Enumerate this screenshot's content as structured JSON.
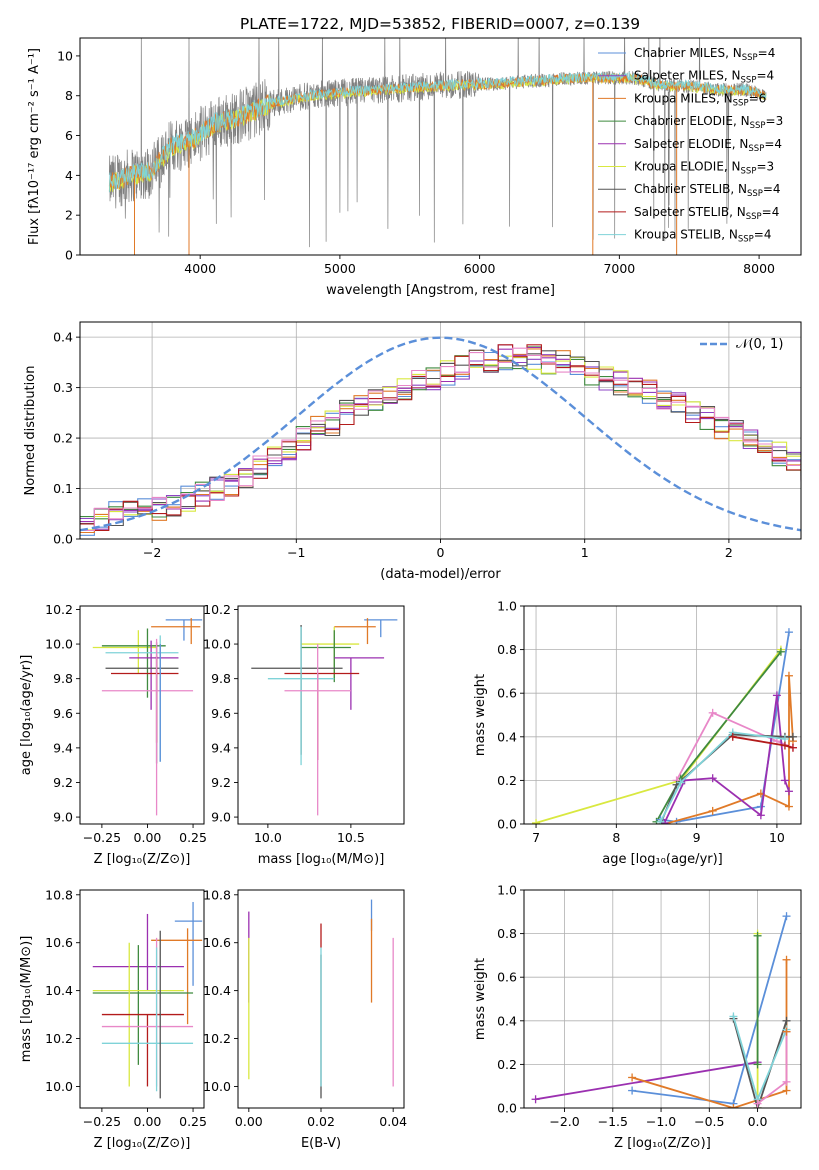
{
  "figure_title": "PLATE=1722, MJD=53852, FIBERID=0007, z=0.139",
  "colors": {
    "Chabrier MILES": "#5b8fd9",
    "Salpeter MILES": "#8e44c4",
    "Kroupa MILES": "#e07a28",
    "Chabrier ELODIE": "#3f8a3f",
    "Salpeter ELODIE": "#9b30b0",
    "Kroupa ELODIE": "#d9e840",
    "Chabrier STELIB": "#555555",
    "Salpeter STELIB": "#b31b1b",
    "Kroupa STELIB": "#7fd3d8",
    "pink": "#e888c8",
    "data_gray": "#808080",
    "grid": "#b0b0b0"
  },
  "chart_data": [
    {
      "id": "spectrum",
      "type": "line",
      "title": "",
      "xlabel": "wavelength [Angstrom, rest frame]",
      "ylabel": "Flux [fλ10⁻¹⁷ erg cm⁻² s⁻¹ A⁻¹]",
      "xlim": [
        3140,
        8300
      ],
      "ylim": [
        0,
        10.9
      ],
      "xticks": [
        4000,
        5000,
        6000,
        7000,
        8000
      ],
      "yticks": [
        0,
        2,
        4,
        6,
        8,
        10
      ],
      "grid": false,
      "legend_position": "top-right",
      "legend": [
        "Chabrier MILES, N_SSP=4",
        "Salpeter MILES, N_SSP=4",
        "Kroupa MILES, N_SSP=6",
        "Chabrier ELODIE, N_SSP=3",
        "Salpeter ELODIE, N_SSP=4",
        "Kroupa ELODIE, N_SSP=3",
        "Chabrier STELIB, N_SSP=4",
        "Salpeter STELIB, N_SSP=4",
        "Kroupa STELIB, N_SSP=4"
      ],
      "legend_colors": [
        "Chabrier MILES",
        "Salpeter MILES",
        "Kroupa MILES",
        "Chabrier ELODIE",
        "Salpeter ELODIE",
        "Kroupa ELODIE",
        "Chabrier STELIB",
        "Salpeter STELIB",
        "Kroupa STELIB"
      ],
      "continuum": [
        [
          3350,
          3.6
        ],
        [
          3500,
          4.0
        ],
        [
          3650,
          4.2
        ],
        [
          3800,
          5.5
        ],
        [
          3950,
          5.8
        ],
        [
          4100,
          6.6
        ],
        [
          4300,
          7.0
        ],
        [
          4500,
          7.6
        ],
        [
          4700,
          7.9
        ],
        [
          4900,
          8.1
        ],
        [
          5100,
          8.2
        ],
        [
          5300,
          8.3
        ],
        [
          5500,
          8.4
        ],
        [
          5700,
          8.5
        ],
        [
          5900,
          8.55
        ],
        [
          6100,
          8.6
        ],
        [
          6300,
          8.7
        ],
        [
          6500,
          8.8
        ],
        [
          6700,
          8.9
        ],
        [
          6900,
          8.9
        ],
        [
          7100,
          8.9
        ],
        [
          7300,
          8.5
        ],
        [
          7500,
          8.5
        ],
        [
          7700,
          8.3
        ],
        [
          7900,
          8.3
        ],
        [
          8050,
          8.0
        ]
      ]
    },
    {
      "id": "residuals",
      "type": "line",
      "title": "",
      "xlabel": "(data-model)/error",
      "ylabel": "Normed distribution",
      "xlim": [
        -2.5,
        2.5
      ],
      "ylim": [
        0,
        0.43
      ],
      "xticks": [
        -2,
        -1,
        0,
        1,
        2
      ],
      "yticks": [
        0.0,
        0.1,
        0.2,
        0.3,
        0.4
      ],
      "grid": true,
      "legend_position": "top-right",
      "legend": [
        "𝒩(0, 1)"
      ],
      "bin_width": 0.1,
      "histogram_mean": [
        0.03,
        0.04,
        0.05,
        0.05,
        0.06,
        0.06,
        0.07,
        0.08,
        0.09,
        0.1,
        0.11,
        0.12,
        0.14,
        0.16,
        0.18,
        0.2,
        0.22,
        0.23,
        0.25,
        0.27,
        0.28,
        0.29,
        0.3,
        0.31,
        0.32,
        0.33,
        0.34,
        0.35,
        0.35,
        0.36,
        0.36,
        0.36,
        0.35,
        0.35,
        0.34,
        0.33,
        0.32,
        0.31,
        0.3,
        0.29,
        0.28,
        0.27,
        0.25,
        0.24,
        0.22,
        0.21,
        0.2,
        0.18,
        0.17,
        0.16,
        0.14,
        0.13,
        0.12,
        0.11,
        0.1,
        0.09,
        0.08,
        0.07,
        0.06,
        0.05,
        0.04
      ],
      "normal_curve": {
        "mean": 0,
        "sigma": 1
      }
    },
    {
      "id": "age_vs_Z",
      "type": "scatter",
      "xlabel": "Z [log₁₀(Z/Z⊙)]",
      "ylabel": "age  [log₁₀(age/yr)]",
      "xlim": [
        -0.37,
        0.31
      ],
      "ylim": [
        8.96,
        10.22
      ],
      "xticks": [
        -0.25,
        0.0,
        0.25
      ],
      "yticks": [
        9.0,
        9.2,
        9.4,
        9.6,
        9.8,
        10.0,
        10.2
      ],
      "points": [
        {
          "c": "Chabrier MILES",
          "x": 0.2,
          "y": 10.14,
          "xerr": [
            0.1,
            0.1
          ],
          "yerr": [
            0.12,
            0.0
          ]
        },
        {
          "c": "Kroupa MILES",
          "x": 0.24,
          "y": 10.1,
          "xerr": [
            0.22,
            0.05
          ],
          "yerr": [
            0.1,
            0.05
          ]
        },
        {
          "c": "Kroupa ELODIE",
          "x": -0.05,
          "y": 9.98,
          "xerr": [
            0.25,
            0.1
          ],
          "yerr": [
            0.15,
            0.1
          ]
        },
        {
          "c": "Chabrier ELODIE",
          "x": 0.0,
          "y": 9.99,
          "xerr": [
            0.25,
            0.1
          ],
          "yerr": [
            0.3,
            0.1
          ]
        },
        {
          "c": "Salpeter ELODIE",
          "x": 0.02,
          "y": 9.92,
          "xerr": [
            0.12,
            0.15
          ],
          "yerr": [
            0.3,
            0.1
          ]
        },
        {
          "c": "Chabrier STELIB",
          "x": 0.05,
          "y": 9.86,
          "xerr": [
            0.28,
            0.12
          ],
          "yerr": [
            0.55,
            0.15
          ]
        },
        {
          "c": "Salpeter STELIB",
          "x": 0.05,
          "y": 9.83,
          "xerr": [
            0.25,
            0.12
          ],
          "yerr": [
            0.4,
            0.1
          ]
        },
        {
          "c": "Kroupa STELIB",
          "x": 0.07,
          "y": 9.95,
          "xerr": [
            0.3,
            0.1
          ],
          "yerr": [
            0.63,
            0.1
          ]
        },
        {
          "c": "pink",
          "x": 0.05,
          "y": 9.73,
          "xerr": [
            0.3,
            0.2
          ],
          "yerr": [
            0.72,
            0.3
          ]
        },
        {
          "c": "Chabrier MILES",
          "x": 0.07,
          "y": 9.9,
          "xerr": [
            0.0,
            0.0
          ],
          "yerr": [
            0.58,
            0.1
          ]
        }
      ]
    },
    {
      "id": "age_vs_mass",
      "type": "scatter",
      "xlabel": "mass [log₁₀(M/M⊙)]",
      "ylabel": "",
      "xlim": [
        9.82,
        10.82
      ],
      "ylim": [
        8.96,
        10.22
      ],
      "xticks": [
        10.0,
        10.5
      ],
      "yticks": [
        9.0,
        9.2,
        9.4,
        9.6,
        9.8,
        10.0,
        10.2
      ],
      "points": [
        {
          "c": "Chabrier MILES",
          "x": 10.68,
          "y": 10.14,
          "xerr": [
            0.1,
            0.1
          ],
          "yerr": [
            0.1,
            0.0
          ]
        },
        {
          "c": "Kroupa MILES",
          "x": 10.6,
          "y": 10.1,
          "xerr": [
            0.2,
            0.05
          ],
          "yerr": [
            0.1,
            0.05
          ]
        },
        {
          "c": "Kroupa ELODIE",
          "x": 10.4,
          "y": 10.0,
          "xerr": [
            0.2,
            0.15
          ],
          "yerr": [
            0.2,
            0.1
          ]
        },
        {
          "c": "Chabrier ELODIE",
          "x": 10.4,
          "y": 9.98,
          "xerr": [
            0.2,
            0.1
          ],
          "yerr": [
            0.2,
            0.1
          ]
        },
        {
          "c": "Salpeter ELODIE",
          "x": 10.5,
          "y": 9.92,
          "xerr": [
            0.1,
            0.2
          ],
          "yerr": [
            0.3,
            0.0
          ]
        },
        {
          "c": "Chabrier STELIB",
          "x": 10.2,
          "y": 9.86,
          "xerr": [
            0.3,
            0.25
          ],
          "yerr": [
            0.5,
            0.25
          ]
        },
        {
          "c": "Salpeter STELIB",
          "x": 10.3,
          "y": 9.83,
          "xerr": [
            0.2,
            0.25
          ],
          "yerr": [
            0.5,
            0.0
          ]
        },
        {
          "c": "Kroupa STELIB",
          "x": 10.2,
          "y": 9.8,
          "xerr": [
            0.2,
            0.2
          ],
          "yerr": [
            0.5,
            0.3
          ]
        },
        {
          "c": "pink",
          "x": 10.3,
          "y": 9.73,
          "xerr": [
            0.2,
            0.2
          ],
          "yerr": [
            0.72,
            0.27
          ]
        }
      ]
    },
    {
      "id": "weight_vs_age",
      "type": "line",
      "xlabel": "age  [log₁₀(age/yr)]",
      "ylabel": "mass weight",
      "xlim": [
        6.85,
        10.3
      ],
      "ylim": [
        0,
        1.0
      ],
      "xticks": [
        7,
        8,
        9,
        10
      ],
      "yticks": [
        0.0,
        0.2,
        0.4,
        0.6,
        0.8,
        1.0
      ],
      "grid": true,
      "series": [
        {
          "c": "Kroupa ELODIE",
          "x": [
            7.0,
            8.8,
            10.05
          ],
          "y": [
            0.005,
            0.2,
            0.8
          ]
        },
        {
          "c": "Chabrier ELODIE",
          "x": [
            8.5,
            8.8,
            10.05
          ],
          "y": [
            0.01,
            0.21,
            0.79
          ]
        },
        {
          "c": "Chabrier MILES",
          "x": [
            8.55,
            8.75,
            9.8,
            10.15
          ],
          "y": [
            0.02,
            0.01,
            0.08,
            0.88
          ]
        },
        {
          "c": "Kroupa MILES",
          "x": [
            8.6,
            9.2,
            9.8,
            10.15,
            10.15,
            10.2
          ],
          "y": [
            0.0,
            0.06,
            0.14,
            0.08,
            0.68,
            0.38
          ]
        },
        {
          "c": "pink",
          "x": [
            8.75,
            9.2,
            10.0,
            10.2
          ],
          "y": [
            0.2,
            0.51,
            0.38,
            0.35
          ]
        },
        {
          "c": "Salpeter ELODIE",
          "x": [
            8.6,
            8.85,
            9.2,
            9.8,
            10.0,
            10.1,
            10.15
          ],
          "y": [
            0.005,
            0.2,
            0.21,
            0.04,
            0.59,
            0.2,
            0.15
          ]
        },
        {
          "c": "Chabrier STELIB",
          "x": [
            8.55,
            8.75,
            9.45,
            10.1,
            10.2
          ],
          "y": [
            0.0,
            0.18,
            0.41,
            0.4,
            0.4
          ]
        },
        {
          "c": "Kroupa STELIB",
          "x": [
            8.55,
            8.8,
            9.45,
            10.1
          ],
          "y": [
            0.01,
            0.19,
            0.42,
            0.39
          ]
        },
        {
          "c": "Salpeter STELIB",
          "x": [
            9.45,
            10.1,
            10.2
          ],
          "y": [
            0.4,
            0.36,
            0.35
          ]
        }
      ]
    },
    {
      "id": "mass_vs_Z",
      "type": "scatter",
      "xlabel": "Z [log₁₀(Z/Z⊙)]",
      "ylabel": "mass [log₁₀(M/M⊙)]",
      "xlim": [
        -0.37,
        0.31
      ],
      "ylim": [
        9.91,
        10.82
      ],
      "xticks": [
        -0.25,
        0.0,
        0.25
      ],
      "yticks": [
        10.0,
        10.2,
        10.4,
        10.6,
        10.8
      ],
      "points": [
        {
          "c": "Chabrier MILES",
          "x": 0.25,
          "y": 10.69,
          "xerr": [
            0.1,
            0.05
          ],
          "yerr": [
            0.27,
            0.08
          ]
        },
        {
          "c": "Kroupa MILES",
          "x": 0.22,
          "y": 10.61,
          "xerr": [
            0.2,
            0.08
          ],
          "yerr": [
            0.35,
            0.05
          ]
        },
        {
          "c": "Salpeter ELODIE",
          "x": 0.0,
          "y": 10.5,
          "xerr": [
            0.3,
            0.2
          ],
          "yerr": [
            0.1,
            0.22
          ]
        },
        {
          "c": "Chabrier ELODIE",
          "x": -0.05,
          "y": 10.39,
          "xerr": [
            0.25,
            0.3
          ],
          "yerr": [
            0.3,
            0.2
          ]
        },
        {
          "c": "Kroupa ELODIE",
          "x": -0.1,
          "y": 10.4,
          "xerr": [
            0.2,
            0.3
          ],
          "yerr": [
            0.4,
            0.2
          ]
        },
        {
          "c": "Salpeter STELIB",
          "x": 0.0,
          "y": 10.3,
          "xerr": [
            0.25,
            0.2
          ],
          "yerr": [
            0.3,
            0.0
          ]
        },
        {
          "c": "pink",
          "x": 0.05,
          "y": 10.25,
          "xerr": [
            0.3,
            0.2
          ],
          "yerr": [
            0.25,
            0.37
          ]
        },
        {
          "c": "Kroupa STELIB",
          "x": 0.05,
          "y": 10.18,
          "xerr": [
            0.3,
            0.2
          ],
          "yerr": [
            0.2,
            0.4
          ]
        },
        {
          "c": "Chabrier STELIB",
          "x": 0.07,
          "y": 10.4,
          "xerr": [
            0.0,
            0.0
          ],
          "yerr": [
            0.45,
            0.25
          ]
        }
      ]
    },
    {
      "id": "mass_vs_EBV",
      "type": "scatter",
      "xlabel": "E(B-V)",
      "ylabel": "",
      "xlim": [
        -0.003,
        0.043
      ],
      "ylim": [
        9.91,
        10.82
      ],
      "xticks": [
        0.0,
        0.02,
        0.04
      ],
      "yticks": [
        10.0,
        10.2,
        10.4,
        10.6,
        10.8
      ],
      "points": [
        {
          "c": "Salpeter ELODIE",
          "x": 0.0,
          "y": 10.6,
          "yerr": [
            0.25,
            0.13
          ]
        },
        {
          "c": "Kroupa ELODIE",
          "x": 0.0,
          "y": 10.35,
          "yerr": [
            0.32,
            0.27
          ]
        },
        {
          "c": "Chabrier STELIB",
          "x": 0.02,
          "y": 10.3,
          "yerr": [
            0.35,
            0.25
          ]
        },
        {
          "c": "Salpeter STELIB",
          "x": 0.02,
          "y": 10.63,
          "yerr": [
            0.05,
            0.05
          ]
        },
        {
          "c": "Kroupa STELIB",
          "x": 0.02,
          "y": 10.3,
          "yerr": [
            0.3,
            0.28
          ]
        },
        {
          "c": "Chabrier MILES",
          "x": 0.034,
          "y": 10.7,
          "yerr": [
            0.05,
            0.08
          ]
        },
        {
          "c": "Kroupa MILES",
          "x": 0.034,
          "y": 10.55,
          "yerr": [
            0.2,
            0.15
          ]
        },
        {
          "c": "pink",
          "x": 0.04,
          "y": 10.3,
          "yerr": [
            0.3,
            0.32
          ]
        }
      ]
    },
    {
      "id": "weight_vs_Z",
      "type": "line",
      "xlabel": "Z [log₁₀(Z/Z⊙)]",
      "ylabel": "mass weight",
      "xlim": [
        -2.42,
        0.45
      ],
      "ylim": [
        0,
        1.0
      ],
      "xticks": [
        -2.0,
        -1.5,
        -1.0,
        -0.5,
        0.0
      ],
      "yticks": [
        0.0,
        0.2,
        0.4,
        0.6,
        0.8,
        1.0
      ],
      "grid": true,
      "series": [
        {
          "c": "Salpeter ELODIE",
          "x": [
            -2.3,
            0.0
          ],
          "y": [
            0.04,
            0.21
          ]
        },
        {
          "c": "Chabrier MILES",
          "x": [
            -1.3,
            -0.25,
            0.3
          ],
          "y": [
            0.08,
            0.02,
            0.88
          ]
        },
        {
          "c": "Kroupa MILES",
          "x": [
            -1.3,
            -0.25,
            0.3,
            0.3
          ],
          "y": [
            0.14,
            0.0,
            0.08,
            0.68
          ]
        },
        {
          "c": "Kroupa ELODIE",
          "x": [
            0.0,
            0.0
          ],
          "y": [
            0.0,
            0.8
          ]
        },
        {
          "c": "Chabrier ELODIE",
          "x": [
            0.0,
            0.0
          ],
          "y": [
            0.2,
            0.79
          ]
        },
        {
          "c": "Chabrier STELIB",
          "x": [
            -0.25,
            0.0,
            0.3
          ],
          "y": [
            0.41,
            0.0,
            0.4
          ]
        },
        {
          "c": "Kroupa STELIB",
          "x": [
            -0.25,
            0.0,
            0.3
          ],
          "y": [
            0.42,
            0.04,
            0.36
          ]
        },
        {
          "c": "pink",
          "x": [
            0.0,
            0.3,
            0.3
          ],
          "y": [
            0.02,
            0.12,
            0.35
          ]
        },
        {
          "c": "Kroupa MILES",
          "x": [
            0.3
          ],
          "y": [
            0.35
          ]
        }
      ]
    }
  ]
}
